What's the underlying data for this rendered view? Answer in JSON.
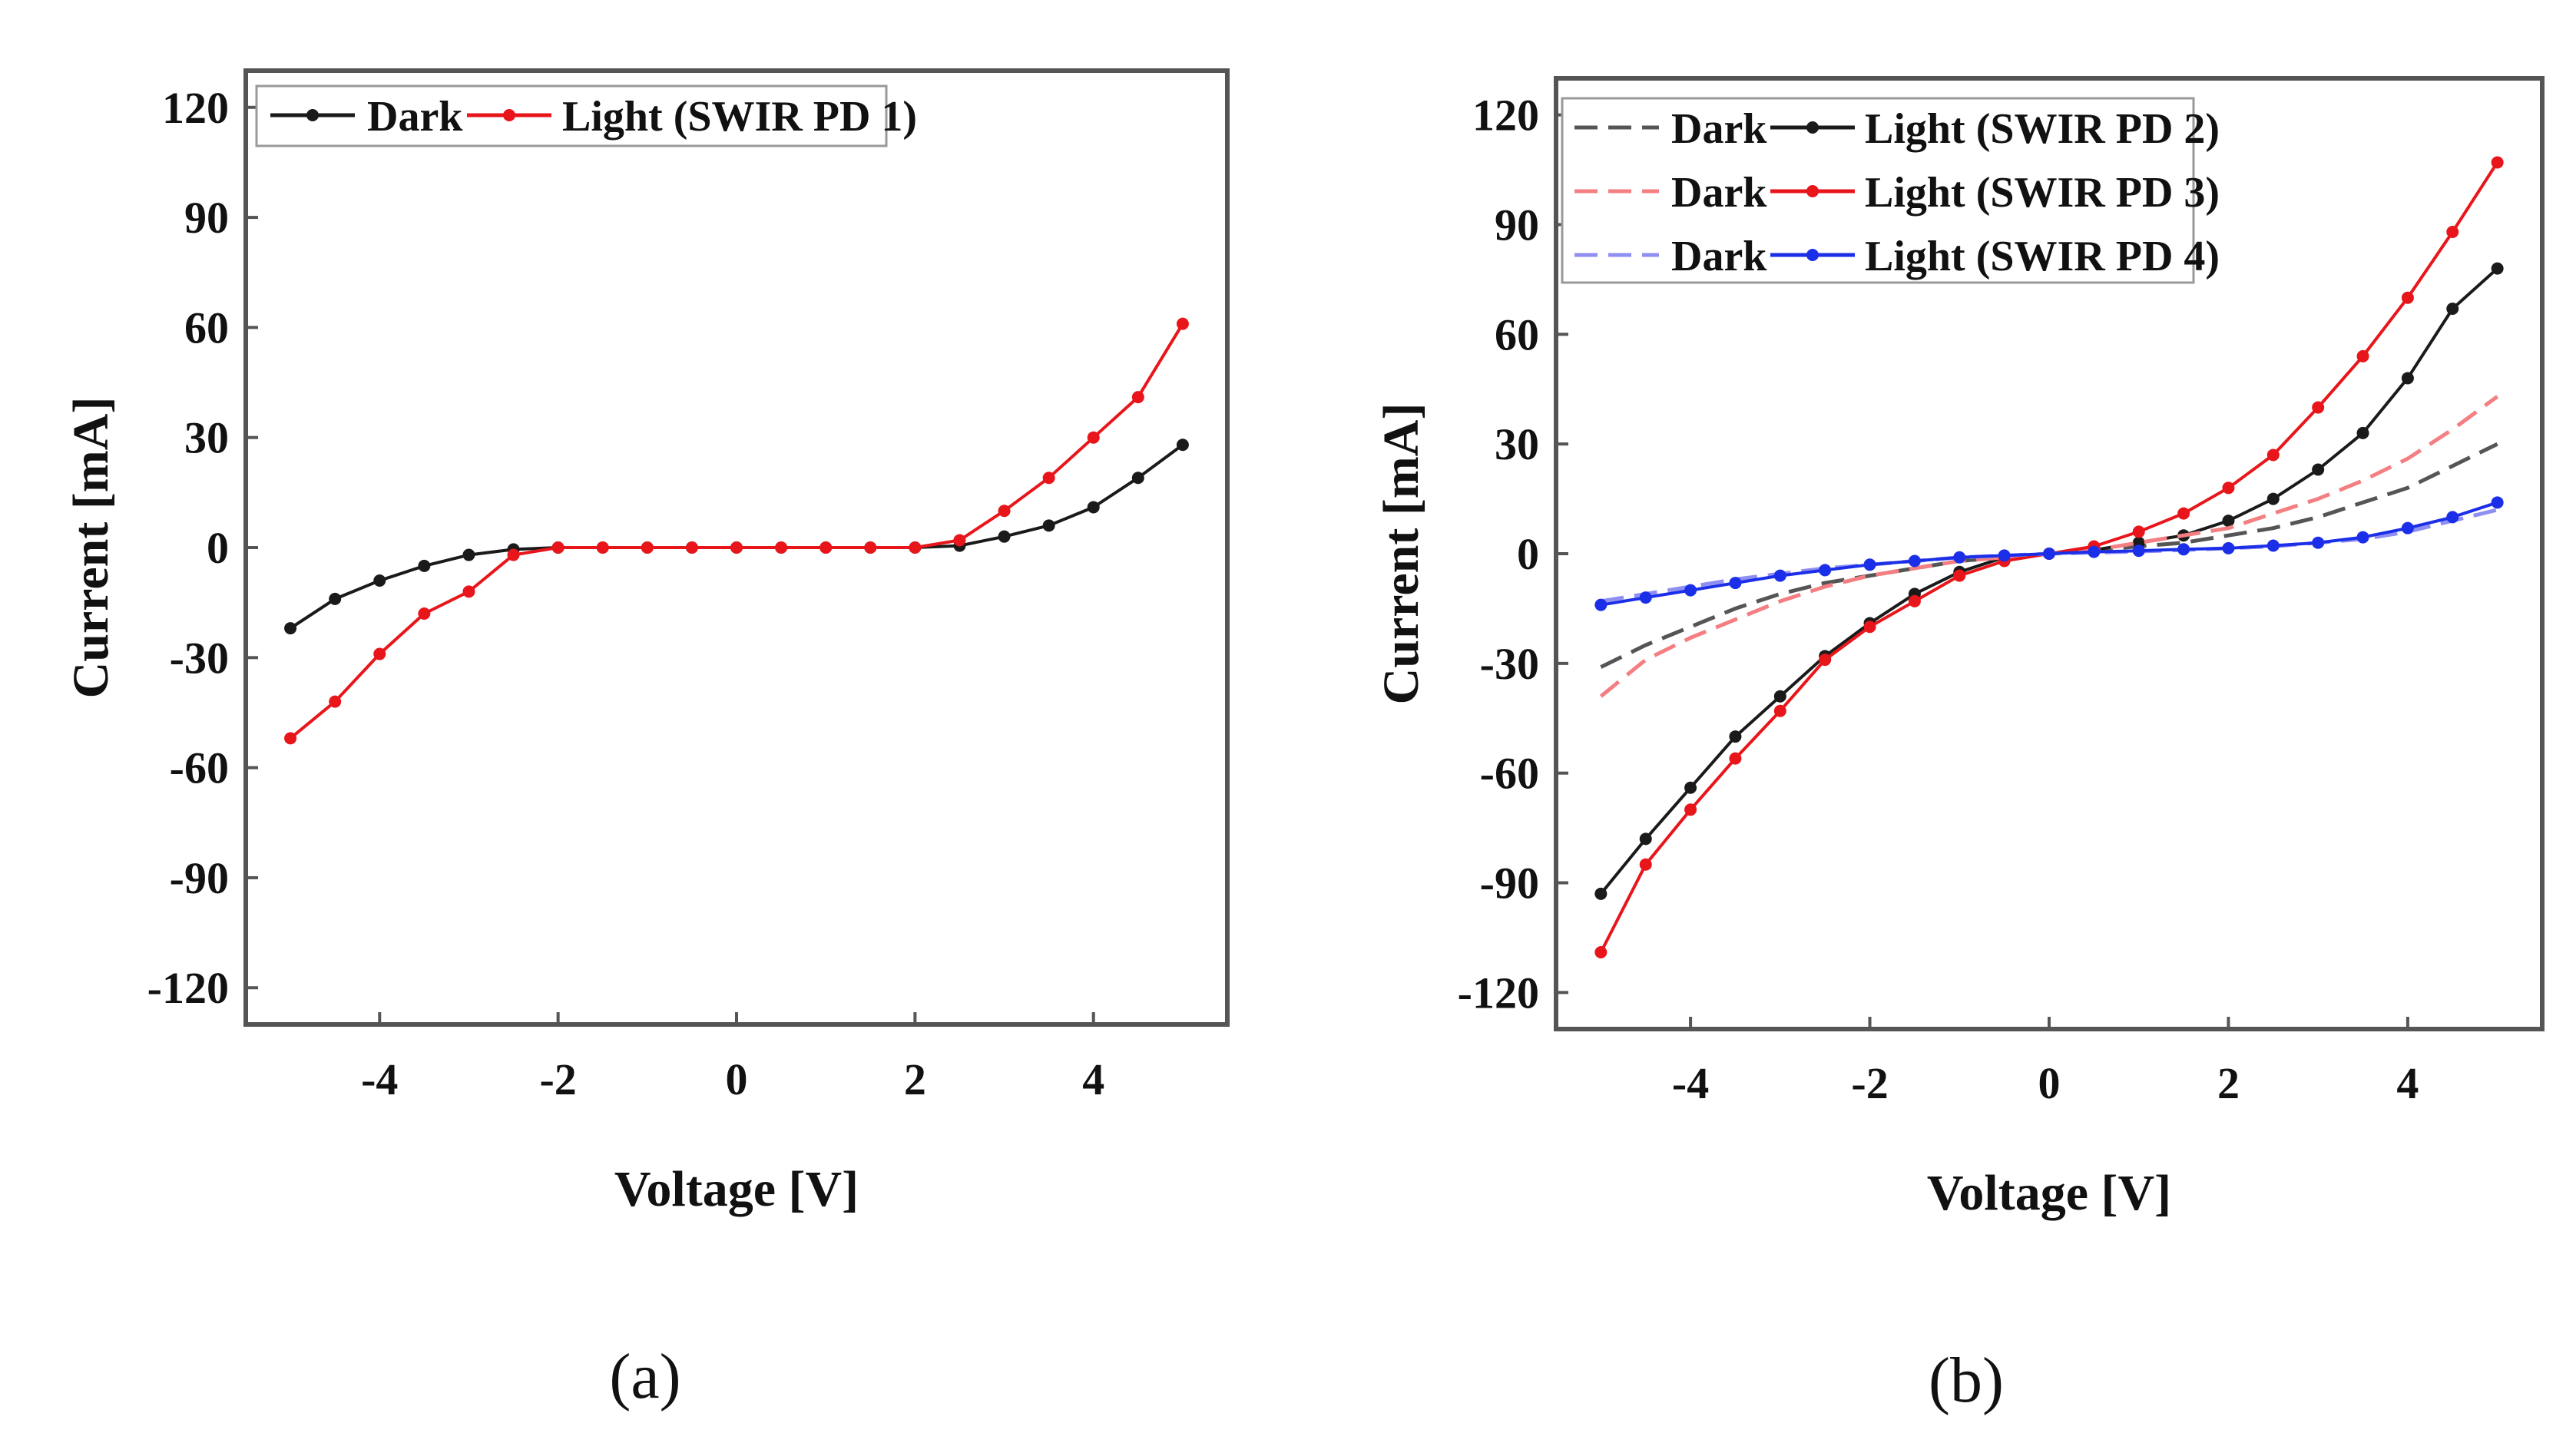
{
  "chart_data": [
    {
      "type": "line",
      "panel_label": "(a)",
      "xlabel": "Voltage [V]",
      "ylabel": "Current [mA]",
      "xlim": [
        -5.5,
        5.5
      ],
      "ylim": [
        -130,
        130
      ],
      "xticks": [
        -4,
        -2,
        0,
        2,
        4
      ],
      "xtick_labels": [
        "-4",
        "-2",
        "0",
        "2",
        "4"
      ],
      "yticks": [
        120,
        90,
        60,
        30,
        0,
        -30,
        -60,
        -90,
        -120
      ],
      "ytick_labels": [
        "120",
        "90",
        "60",
        "30",
        "0",
        "-30",
        "-60",
        "-90",
        "-120"
      ],
      "legend_position": "top-left",
      "series": [
        {
          "name": "Dark",
          "color": "#1a1a1a",
          "style": "solid-marker",
          "x": [
            -5,
            -4.5,
            -4,
            -3.5,
            -3,
            -2.5,
            -2,
            -1.5,
            -1,
            -0.5,
            0,
            0.5,
            1,
            1.5,
            2,
            2.5,
            3,
            3.5,
            4,
            4.5,
            5
          ],
          "values": [
            -22,
            -14,
            -9,
            -5,
            -2,
            -0.5,
            0,
            0,
            0,
            0,
            0,
            0,
            0,
            0,
            0,
            0.5,
            3,
            6,
            11,
            19,
            28
          ]
        },
        {
          "name": "Light (SWIR PD 1)",
          "color": "#e8161b",
          "style": "solid-marker",
          "x": [
            -5,
            -4.5,
            -4,
            -3.5,
            -3,
            -2.5,
            -2,
            -1.5,
            -1,
            -0.5,
            0,
            0.5,
            1,
            1.5,
            2,
            2.5,
            3,
            3.5,
            4,
            4.5,
            5
          ],
          "values": [
            -52,
            -42,
            -29,
            -18,
            -12,
            -2,
            0,
            0,
            0,
            0,
            0,
            0,
            0,
            0,
            0,
            2,
            10,
            19,
            30,
            41,
            61
          ]
        }
      ]
    },
    {
      "type": "line",
      "panel_label": "(b)",
      "xlabel": "Voltage [V]",
      "ylabel": "Current [mA]",
      "xlim": [
        -5.5,
        5.5
      ],
      "ylim": [
        -130,
        130
      ],
      "xticks": [
        -4,
        -2,
        0,
        2,
        4
      ],
      "xtick_labels": [
        "-4",
        "-2",
        "0",
        "2",
        "4"
      ],
      "yticks": [
        120,
        90,
        60,
        30,
        0,
        -30,
        -60,
        -90,
        -120
      ],
      "ytick_labels": [
        "120",
        "90",
        "60",
        "30",
        "0",
        "-30",
        "-60",
        "-90",
        "-120"
      ],
      "legend_position": "top-left",
      "series": [
        {
          "name": "Dark",
          "color": "#555555",
          "style": "dashed",
          "x": [
            -5,
            -4.5,
            -4,
            -3.5,
            -3,
            -2.5,
            -2,
            -1.5,
            -1,
            -0.5,
            0,
            0.5,
            1,
            1.5,
            2,
            2.5,
            3,
            3.5,
            4,
            4.5,
            5
          ],
          "values": [
            -31,
            -25,
            -20,
            -15,
            -11,
            -8,
            -6,
            -4,
            -2,
            -1,
            0,
            1,
            2,
            3,
            5,
            7,
            10,
            14,
            18,
            24,
            30
          ]
        },
        {
          "name": "Light (SWIR PD 2)",
          "color": "#1a1a1a",
          "style": "solid-marker",
          "x": [
            -5,
            -4.5,
            -4,
            -3.5,
            -3,
            -2.5,
            -2,
            -1.5,
            -1,
            -0.5,
            0,
            0.5,
            1,
            1.5,
            2,
            2.5,
            3,
            3.5,
            4,
            4.5,
            5
          ],
          "values": [
            -93,
            -78,
            -64,
            -50,
            -39,
            -28,
            -19,
            -11,
            -5,
            -1,
            0,
            1,
            3,
            5,
            9,
            15,
            23,
            33,
            48,
            67,
            78
          ]
        },
        {
          "name": "Dark",
          "color": "#f47f82",
          "style": "dashed",
          "x": [
            -5,
            -4.5,
            -4,
            -3.5,
            -3,
            -2.5,
            -2,
            -1.5,
            -1,
            -0.5,
            0,
            0.5,
            1,
            1.5,
            2,
            2.5,
            3,
            3.5,
            4,
            4.5,
            5
          ],
          "values": [
            -39,
            -29,
            -23,
            -18,
            -13,
            -9,
            -6,
            -4,
            -2,
            -1,
            0,
            1,
            3,
            5,
            7,
            11,
            15,
            20,
            26,
            34,
            43
          ]
        },
        {
          "name": "Light (SWIR PD 3)",
          "color": "#e8161b",
          "style": "solid-marker",
          "x": [
            -5,
            -4.5,
            -4,
            -3.5,
            -3,
            -2.5,
            -2,
            -1.5,
            -1,
            -0.5,
            0,
            0.5,
            1,
            1.5,
            2,
            2.5,
            3,
            3.5,
            4,
            4.5,
            5
          ],
          "values": [
            -109,
            -85,
            -70,
            -56,
            -43,
            -29,
            -20,
            -13,
            -6,
            -2,
            0,
            2,
            6,
            11,
            18,
            27,
            40,
            54,
            70,
            88,
            107
          ]
        },
        {
          "name": "Dark",
          "color": "#8f8ff2",
          "style": "dashed",
          "x": [
            -5,
            -4.5,
            -4,
            -3.5,
            -3,
            -2.5,
            -2,
            -1.5,
            -1,
            -0.5,
            0,
            0.5,
            1,
            1.5,
            2,
            2.5,
            3,
            3.5,
            4,
            4.5,
            5
          ],
          "values": [
            -13,
            -11,
            -9,
            -7,
            -5.5,
            -4,
            -3,
            -2,
            -1,
            -0.5,
            0,
            0.3,
            0.6,
            1,
            1.5,
            2,
            3,
            4,
            6,
            9,
            12
          ]
        },
        {
          "name": "Light (SWIR PD 4)",
          "color": "#1c2fe8",
          "style": "solid-marker",
          "x": [
            -5,
            -4.5,
            -4,
            -3.5,
            -3,
            -2.5,
            -2,
            -1.5,
            -1,
            -0.5,
            0,
            0.5,
            1,
            1.5,
            2,
            2.5,
            3,
            3.5,
            4,
            4.5,
            5
          ],
          "values": [
            -14,
            -12,
            -10,
            -8,
            -6,
            -4.5,
            -3,
            -2,
            -1,
            -0.5,
            0,
            0.5,
            0.8,
            1.2,
            1.5,
            2.2,
            3,
            4.5,
            7,
            10,
            14
          ]
        }
      ]
    }
  ]
}
